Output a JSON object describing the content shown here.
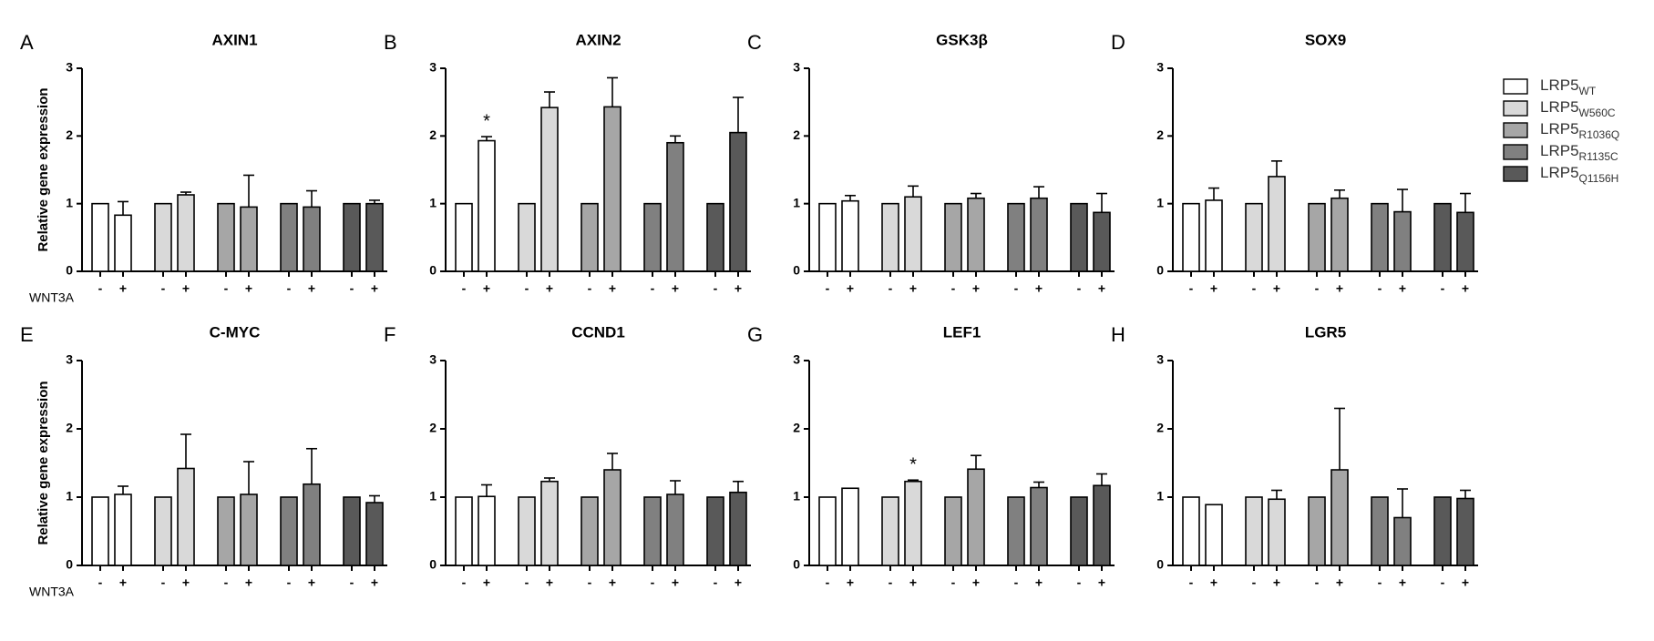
{
  "legend": [
    {
      "name": "LRP5",
      "sub": "WT",
      "color": "#ffffff"
    },
    {
      "name": "LRP5",
      "sub": "W560C",
      "color": "#d9d9d9"
    },
    {
      "name": "LRP5",
      "sub": "R1036Q",
      "color": "#a6a6a6"
    },
    {
      "name": "LRP5",
      "sub": "R1135C",
      "color": "#808080"
    },
    {
      "name": "LRP5",
      "sub": "Q1156H",
      "color": "#595959"
    }
  ],
  "chart_data": [
    {
      "type": "bar",
      "panel": "A",
      "title": "AXIN1",
      "ylabel": "Relative gene expression",
      "xrow_label": "WNT3A",
      "categories": [
        "-",
        "+"
      ],
      "ylim": [
        0,
        3
      ],
      "yticks": [
        0,
        1,
        2,
        3
      ],
      "series": [
        {
          "values": [
            1,
            0.83
          ],
          "errors": [
            null,
            0.2
          ]
        },
        {
          "values": [
            1,
            1.13
          ],
          "errors": [
            null,
            0.04
          ]
        },
        {
          "values": [
            1,
            0.95
          ],
          "errors": [
            null,
            0.47
          ]
        },
        {
          "values": [
            1,
            0.95
          ],
          "errors": [
            null,
            0.24
          ]
        },
        {
          "values": [
            1,
            1.0
          ],
          "errors": [
            null,
            0.05
          ]
        }
      ]
    },
    {
      "type": "bar",
      "panel": "B",
      "title": "AXIN2",
      "categories": [
        "-",
        "+"
      ],
      "ylim": [
        0,
        3
      ],
      "yticks": [
        0,
        1,
        2,
        3
      ],
      "series": [
        {
          "values": [
            1,
            1.93
          ],
          "errors": [
            null,
            0.06
          ]
        },
        {
          "values": [
            1,
            2.42
          ],
          "errors": [
            null,
            0.23
          ]
        },
        {
          "values": [
            1,
            2.43
          ],
          "errors": [
            null,
            0.43
          ]
        },
        {
          "values": [
            1,
            1.9
          ],
          "errors": [
            null,
            0.1
          ]
        },
        {
          "values": [
            1,
            2.05
          ],
          "errors": [
            null,
            0.52
          ]
        }
      ],
      "annotations": [
        {
          "text": "*",
          "series": 0,
          "index": 1
        }
      ]
    },
    {
      "type": "bar",
      "panel": "C",
      "title": "GSK3β",
      "categories": [
        "-",
        "+"
      ],
      "ylim": [
        0,
        3
      ],
      "yticks": [
        0,
        1,
        2,
        3
      ],
      "series": [
        {
          "values": [
            1,
            1.04
          ],
          "errors": [
            null,
            0.08
          ]
        },
        {
          "values": [
            1,
            1.1
          ],
          "errors": [
            null,
            0.16
          ]
        },
        {
          "values": [
            1,
            1.08
          ],
          "errors": [
            null,
            0.07
          ]
        },
        {
          "values": [
            1,
            1.08
          ],
          "errors": [
            null,
            0.17
          ]
        },
        {
          "values": [
            1,
            0.87
          ],
          "errors": [
            null,
            0.28
          ]
        }
      ]
    },
    {
      "type": "bar",
      "panel": "D",
      "title": "SOX9",
      "categories": [
        "-",
        "+"
      ],
      "ylim": [
        0,
        3
      ],
      "yticks": [
        0,
        1,
        2,
        3
      ],
      "series": [
        {
          "values": [
            1,
            1.05
          ],
          "errors": [
            null,
            0.18
          ]
        },
        {
          "values": [
            1,
            1.4
          ],
          "errors": [
            null,
            0.23
          ]
        },
        {
          "values": [
            1,
            1.08
          ],
          "errors": [
            null,
            0.12
          ]
        },
        {
          "values": [
            1,
            0.88
          ],
          "errors": [
            null,
            0.33
          ]
        },
        {
          "values": [
            1,
            0.87
          ],
          "errors": [
            null,
            0.28
          ]
        }
      ]
    },
    {
      "type": "bar",
      "panel": "E",
      "title": "C-MYC",
      "ylabel": "Relative gene expression",
      "xrow_label": "WNT3A",
      "categories": [
        "-",
        "+"
      ],
      "ylim": [
        0,
        3
      ],
      "yticks": [
        0,
        1,
        2,
        3
      ],
      "series": [
        {
          "values": [
            1,
            1.04
          ],
          "errors": [
            null,
            0.12
          ]
        },
        {
          "values": [
            1,
            1.42
          ],
          "errors": [
            null,
            0.5
          ]
        },
        {
          "values": [
            1,
            1.04
          ],
          "errors": [
            null,
            0.48
          ]
        },
        {
          "values": [
            1,
            1.19
          ],
          "errors": [
            null,
            0.52
          ]
        },
        {
          "values": [
            1,
            0.92
          ],
          "errors": [
            null,
            0.1
          ]
        }
      ]
    },
    {
      "type": "bar",
      "panel": "F",
      "title": "CCND1",
      "categories": [
        "-",
        "+"
      ],
      "ylim": [
        0,
        3
      ],
      "yticks": [
        0,
        1,
        2,
        3
      ],
      "series": [
        {
          "values": [
            1,
            1.01
          ],
          "errors": [
            null,
            0.17
          ]
        },
        {
          "values": [
            1,
            1.23
          ],
          "errors": [
            null,
            0.05
          ]
        },
        {
          "values": [
            1,
            1.4
          ],
          "errors": [
            null,
            0.24
          ]
        },
        {
          "values": [
            1,
            1.04
          ],
          "errors": [
            null,
            0.2
          ]
        },
        {
          "values": [
            1,
            1.07
          ],
          "errors": [
            null,
            0.16
          ]
        }
      ]
    },
    {
      "type": "bar",
      "panel": "G",
      "title": "LEF1",
      "categories": [
        "-",
        "+"
      ],
      "ylim": [
        0,
        3
      ],
      "yticks": [
        0,
        1,
        2,
        3
      ],
      "series": [
        {
          "values": [
            1,
            1.13
          ],
          "errors": [
            null,
            null
          ]
        },
        {
          "values": [
            1,
            1.23
          ],
          "errors": [
            null,
            0.02
          ]
        },
        {
          "values": [
            1,
            1.41
          ],
          "errors": [
            null,
            0.2
          ]
        },
        {
          "values": [
            1,
            1.14
          ],
          "errors": [
            null,
            0.08
          ]
        },
        {
          "values": [
            1,
            1.17
          ],
          "errors": [
            null,
            0.17
          ]
        }
      ],
      "annotations": [
        {
          "text": "*",
          "series": 1,
          "index": 1
        }
      ]
    },
    {
      "type": "bar",
      "panel": "H",
      "title": "LGR5",
      "categories": [
        "-",
        "+"
      ],
      "ylim": [
        0,
        3
      ],
      "yticks": [
        0,
        1,
        2,
        3
      ],
      "series": [
        {
          "values": [
            1,
            0.89
          ],
          "errors": [
            null,
            null
          ]
        },
        {
          "values": [
            1,
            0.97
          ],
          "errors": [
            null,
            0.13
          ]
        },
        {
          "values": [
            1,
            1.4
          ],
          "errors": [
            null,
            0.9
          ]
        },
        {
          "values": [
            1,
            0.7
          ],
          "errors": [
            null,
            0.42
          ]
        },
        {
          "values": [
            1,
            0.98
          ],
          "errors": [
            null,
            0.12
          ]
        }
      ]
    }
  ]
}
